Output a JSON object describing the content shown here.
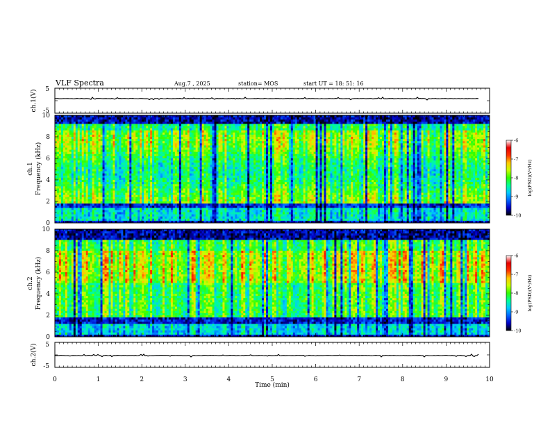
{
  "header": {
    "title": "VLF Spectra",
    "date": "Aug.7 , 2025",
    "station": "station= MOS",
    "start": "start UT = 18: 51: 16"
  },
  "chart_data": [
    {
      "type": "line",
      "ylabel": "ch.1(V)",
      "ylim": [
        -5,
        5
      ],
      "yticks": [
        "5",
        "-5"
      ],
      "xlim": [
        0,
        10
      ],
      "note": "waveform trace near 0 V across time"
    },
    {
      "type": "heatmap",
      "ylabel_line1": "ch.1",
      "ylabel_line2": "Frequency (kHz)",
      "ylim": [
        0,
        10
      ],
      "yticks": [
        "0",
        "2",
        "4",
        "6",
        "8",
        "10"
      ],
      "xlim": [
        0,
        10
      ],
      "colorbar": {
        "label": "log(PSD)(V²/Hz)",
        "ticks": [
          "-6",
          "-7",
          "-8",
          "-9",
          "-10"
        ],
        "range": [
          -10,
          -6
        ]
      }
    },
    {
      "type": "heatmap",
      "ylabel_line1": "ch.2",
      "ylabel_line2": "Frequency (kHz)",
      "ylim": [
        0,
        10
      ],
      "yticks": [
        "0",
        "2",
        "4",
        "6",
        "8",
        "10"
      ],
      "xlim": [
        0,
        10
      ],
      "colorbar": {
        "label": "log(PSD)(V²/Hz)",
        "ticks": [
          "-6",
          "-7",
          "-8",
          "-9",
          "-10"
        ],
        "range": [
          -10,
          -6
        ]
      }
    },
    {
      "type": "line",
      "ylabel": "ch.2(V)",
      "ylim": [
        -5,
        5
      ],
      "yticks": [
        "5",
        "-5"
      ],
      "xlim": [
        0,
        10
      ],
      "xlabel": "Time (min)",
      "xticks": [
        "0",
        "1",
        "2",
        "3",
        "4",
        "5",
        "6",
        "7",
        "8",
        "9",
        "10"
      ],
      "note": "waveform trace near 0 V across time"
    }
  ],
  "colors": {
    "colormap": [
      "#000000",
      "#0000c8",
      "#0064ff",
      "#00c8ff",
      "#00ff96",
      "#32ff00",
      "#c8ff00",
      "#ffc800",
      "#ff3200",
      "#e60000",
      "#ffffff"
    ]
  }
}
